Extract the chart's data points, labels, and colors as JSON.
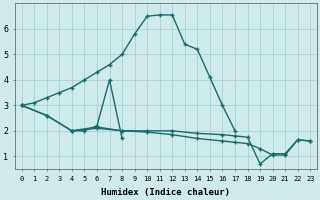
{
  "xlabel": "Humidex (Indice chaleur)",
  "ylabel": "",
  "bg_color": "#ceeaea",
  "line_color": "#1a6b6b",
  "grid_color": "#afd4d4",
  "xlim": [
    -0.5,
    23.5
  ],
  "ylim": [
    0.5,
    7.0
  ],
  "yticks": [
    1,
    2,
    3,
    4,
    5,
    6
  ],
  "xticks": [
    0,
    1,
    2,
    3,
    4,
    5,
    6,
    7,
    8,
    9,
    10,
    11,
    12,
    13,
    14,
    15,
    16,
    17,
    18,
    19,
    20,
    21,
    22,
    23
  ],
  "curves": [
    {
      "x": [
        0,
        1,
        2,
        3,
        4,
        5,
        6,
        7,
        8,
        9,
        10,
        11,
        12,
        13,
        14,
        15,
        16,
        17
      ],
      "y": [
        3.0,
        3.1,
        3.3,
        3.5,
        3.7,
        4.0,
        4.3,
        4.6,
        5.0,
        5.8,
        6.5,
        6.55,
        6.55,
        5.4,
        5.2,
        4.1,
        3.0,
        2.0
      ]
    },
    {
      "x": [
        4,
        5,
        6,
        7,
        8
      ],
      "y": [
        2.0,
        2.0,
        2.2,
        4.0,
        1.7
      ]
    },
    {
      "x": [
        0,
        2,
        4,
        6,
        8,
        10,
        12,
        14,
        16,
        17,
        18,
        19,
        20,
        21,
        22,
        23
      ],
      "y": [
        3.0,
        2.6,
        2.0,
        2.15,
        2.0,
        2.0,
        2.0,
        1.9,
        1.85,
        1.8,
        1.75,
        0.7,
        1.1,
        1.1,
        1.65,
        1.6
      ]
    },
    {
      "x": [
        0,
        2,
        4,
        6,
        8,
        10,
        12,
        14,
        16,
        17,
        18,
        19,
        20,
        21,
        22,
        23
      ],
      "y": [
        3.0,
        2.6,
        2.0,
        2.1,
        2.0,
        1.95,
        1.85,
        1.7,
        1.6,
        1.55,
        1.5,
        1.3,
        1.05,
        1.05,
        1.65,
        1.6
      ]
    }
  ],
  "marker": "+",
  "markersize": 3,
  "linewidth": 1.0
}
